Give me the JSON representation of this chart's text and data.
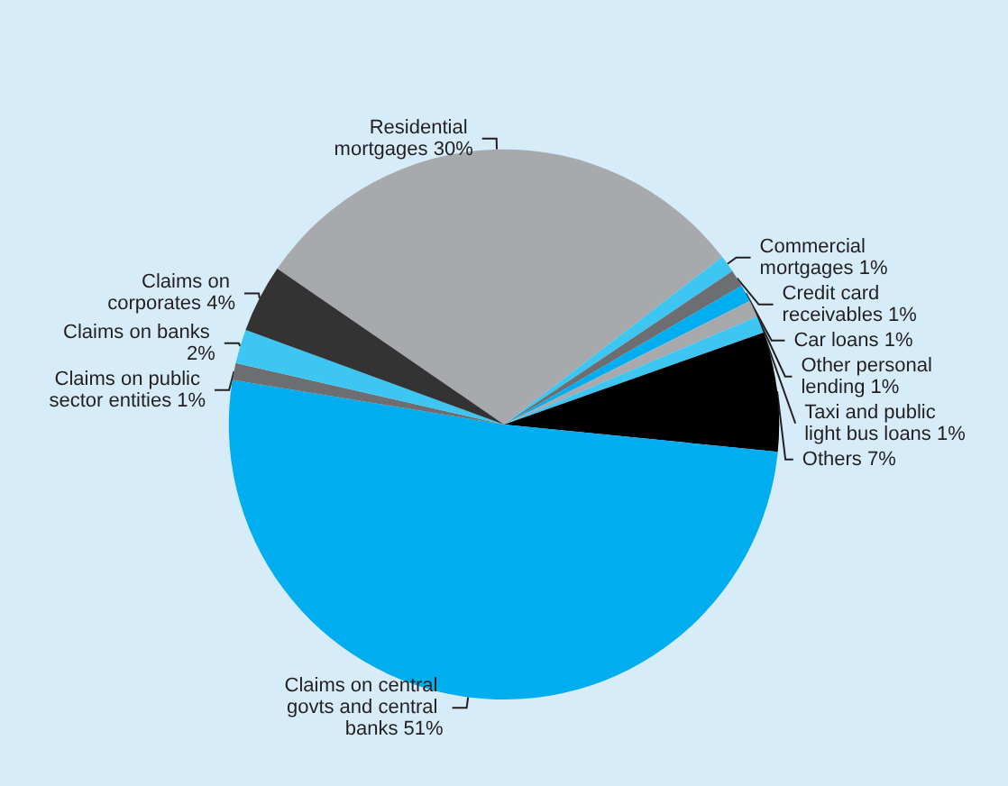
{
  "chart_data": {
    "type": "pie",
    "categories": [
      "Residential mortgages",
      "Commercial mortgages",
      "Credit card receivables",
      "Car loans",
      "Other personal lending",
      "Taxi and public light bus loans",
      "Others",
      "Claims on central govts and central banks",
      "Claims on public sector entities",
      "Claims on banks",
      "Claims on corporates"
    ],
    "values": [
      30,
      1,
      1,
      1,
      1,
      1,
      7,
      51,
      1,
      2,
      4
    ],
    "value_labels": [
      "30%",
      "1%",
      "1%",
      "1%",
      "1%",
      "1%",
      "7%",
      "51%",
      "1%",
      "2%",
      "4%"
    ],
    "colors": [
      "#a7a9ac",
      "#3ec6f2",
      "#6d6e71",
      "#00aeef",
      "#a7a9ac",
      "#3ec6f2",
      "#000000",
      "#00aeef",
      "#6d6e71",
      "#3ec6f2",
      "#333333"
    ],
    "legend": false
  }
}
